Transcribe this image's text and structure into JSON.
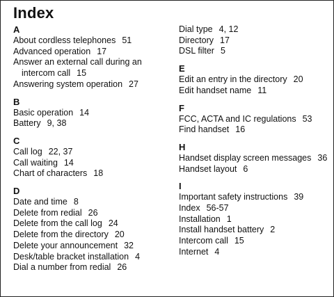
{
  "title": "Index",
  "columns": [
    {
      "sections": [
        {
          "letter": "A",
          "entries": [
            {
              "term": "About cordless telephones",
              "pages": "51"
            },
            {
              "term": "Advanced operation",
              "pages": "17"
            },
            {
              "term": "Answer an external call during an intercom call",
              "pages": "15"
            },
            {
              "term": "Answering system operation",
              "pages": "27"
            }
          ]
        },
        {
          "letter": "B",
          "entries": [
            {
              "term": "Basic operation",
              "pages": "14"
            },
            {
              "term": "Battery",
              "pages": "9, 38"
            }
          ]
        },
        {
          "letter": "C",
          "entries": [
            {
              "term": "Call log",
              "pages": "22, 37"
            },
            {
              "term": "Call waiting",
              "pages": "14"
            },
            {
              "term": "Chart of characters",
              "pages": "18"
            }
          ]
        },
        {
          "letter": "D",
          "entries": [
            {
              "term": "Date and time",
              "pages": "8"
            },
            {
              "term": "Delete from redial",
              "pages": "26"
            },
            {
              "term": "Delete from the call log",
              "pages": "24"
            },
            {
              "term": "Delete from the directory",
              "pages": "20"
            },
            {
              "term": "Delete your announcement",
              "pages": "32"
            },
            {
              "term": "Desk/table bracket installation",
              "pages": "4"
            },
            {
              "term": "Dial a number from redial",
              "pages": "26"
            }
          ]
        }
      ]
    },
    {
      "sections": [
        {
          "letter": "",
          "entries": [
            {
              "term": "Dial type",
              "pages": "4, 12"
            },
            {
              "term": "Directory",
              "pages": "17"
            },
            {
              "term": "DSL filter",
              "pages": "5"
            }
          ]
        },
        {
          "letter": "E",
          "entries": [
            {
              "term": "Edit an entry in the directory",
              "pages": "20"
            },
            {
              "term": "Edit handset name",
              "pages": "11"
            }
          ]
        },
        {
          "letter": "F",
          "entries": [
            {
              "term": "FCC, ACTA and IC regulations",
              "pages": "53"
            },
            {
              "term": "Find handset",
              "pages": "16"
            }
          ]
        },
        {
          "letter": "H",
          "entries": [
            {
              "term": "Handset display screen messages",
              "pages": "36"
            },
            {
              "term": "Handset layout",
              "pages": "6"
            }
          ]
        },
        {
          "letter": "I",
          "entries": [
            {
              "term": "Important safety instructions",
              "pages": "39"
            },
            {
              "term": "Index",
              "pages": "56-57"
            },
            {
              "term": "Installation",
              "pages": "1"
            },
            {
              "term": "Install handset battery",
              "pages": "2"
            },
            {
              "term": "Intercom call",
              "pages": "15"
            },
            {
              "term": "Internet",
              "pages": "4"
            }
          ]
        }
      ]
    }
  ]
}
